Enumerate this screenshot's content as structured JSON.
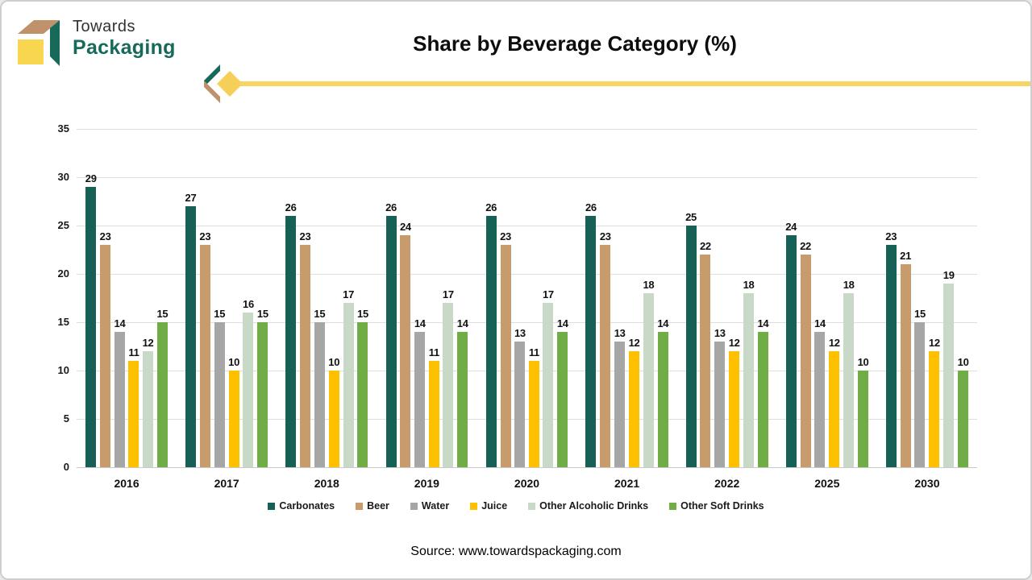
{
  "logo": {
    "line1": "Towards",
    "line2": "Packaging"
  },
  "title": "Share by Beverage Category (%)",
  "source": "Source: www.towardspackaging.com",
  "colors": {
    "brand_green": "#17695a",
    "brand_tan": "#c0926b",
    "brand_yellow": "#f9d64f",
    "divider_diamond": "#f6cf58",
    "divider_line": "#f7d563"
  },
  "chart_data": {
    "type": "bar",
    "title": "Share by Beverage Category (%)",
    "categories": [
      "2016",
      "2017",
      "2018",
      "2019",
      "2020",
      "2021",
      "2022",
      "2025",
      "2030"
    ],
    "series": [
      {
        "name": "Carbonates",
        "color": "#166056",
        "values": [
          29,
          27,
          26,
          26,
          26,
          26,
          25,
          24,
          23
        ]
      },
      {
        "name": "Beer",
        "color": "#c79b6c",
        "values": [
          23,
          23,
          23,
          24,
          23,
          23,
          22,
          22,
          21
        ]
      },
      {
        "name": "Water",
        "color": "#a6a6a6",
        "values": [
          14,
          15,
          15,
          14,
          13,
          13,
          13,
          14,
          15
        ]
      },
      {
        "name": "Juice",
        "color": "#ffc000",
        "values": [
          11,
          10,
          10,
          11,
          11,
          12,
          12,
          12,
          12
        ]
      },
      {
        "name": "Other Alcoholic Drinks",
        "color": "#c9d9c8",
        "values": [
          12,
          16,
          17,
          17,
          17,
          18,
          18,
          18,
          19
        ]
      },
      {
        "name": "Other Soft Drinks",
        "color": "#70ad47",
        "values": [
          15,
          15,
          15,
          14,
          14,
          14,
          14,
          10,
          10
        ]
      }
    ],
    "ylim": [
      0,
      35
    ],
    "yticks": [
      0,
      5,
      10,
      15,
      20,
      25,
      30,
      35
    ],
    "grid": true,
    "value_labels": true,
    "legend_position": "bottom"
  }
}
